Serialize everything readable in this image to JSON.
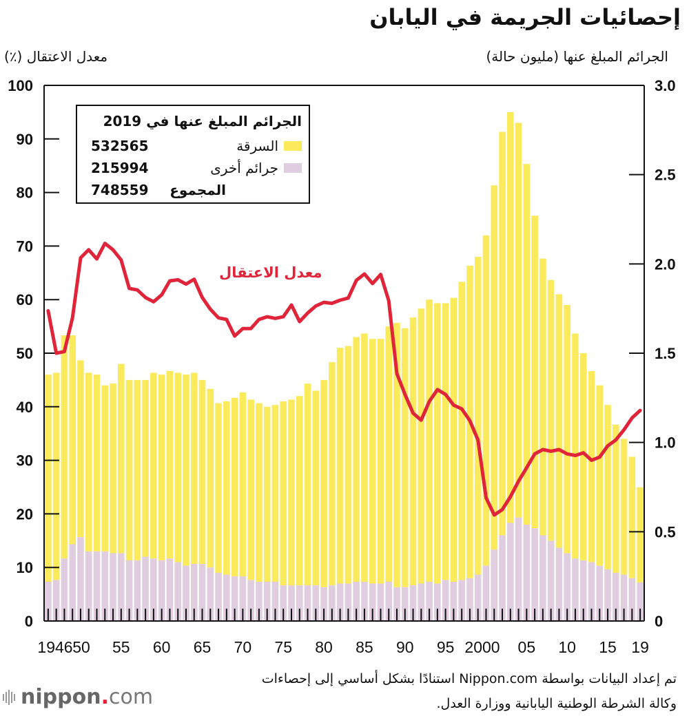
{
  "title": "إحصائيات الجريمة في اليابان",
  "left_axis_title": "معدل الاعتقال (٪)",
  "right_axis_title": "الجرائم المبلغ عنها (مليون حالة)",
  "legend": {
    "heading": "الجرائم المبلغ عنها في 2019",
    "items": [
      {
        "label": "السرقة",
        "value": "532565",
        "color": "#fbea5c"
      },
      {
        "label": "جرائم أخرى",
        "value": "215994",
        "color": "#e0cde0"
      },
      {
        "label": "المجموع",
        "value": "748559"
      }
    ]
  },
  "line_label": "معدل الاعتقال",
  "source": {
    "line1": "تم إعداد البيانات بواسطة Nippon.com استنادًا بشكل أساسي إلى إحصاءات",
    "line2": "وكالة الشرطة الوطنية اليابانية ووزارة العدل."
  },
  "logo": {
    "name": "nippon",
    "dot": ".",
    "suffix": "com"
  },
  "chart_data": {
    "type": "bar",
    "title": "إحصائيات الجريمة في اليابان",
    "xlabel": "",
    "ylabel_left": "معدل الاعتقال (٪)",
    "ylabel_right": "الجرائم المبلغ عنها (مليون حالة)",
    "ylim_left": [
      0,
      100
    ],
    "ylim_right": [
      0,
      3.0
    ],
    "left_ticks": [
      "0",
      "10",
      "20",
      "30",
      "40",
      "50",
      "60",
      "70",
      "80",
      "90",
      "100"
    ],
    "right_ticks": [
      "0",
      "0.5",
      "1.0",
      "1.5",
      "2.0",
      "2.5",
      "3.0"
    ],
    "x_tick_labels": [
      {
        "year": 1946,
        "label": "1946"
      },
      {
        "year": 1950,
        "label": "50"
      },
      {
        "year": 1955,
        "label": "55"
      },
      {
        "year": 1960,
        "label": "60"
      },
      {
        "year": 1965,
        "label": "65"
      },
      {
        "year": 1970,
        "label": "70"
      },
      {
        "year": 1975,
        "label": "75"
      },
      {
        "year": 1980,
        "label": "80"
      },
      {
        "year": 1985,
        "label": "85"
      },
      {
        "year": 1990,
        "label": "90"
      },
      {
        "year": 1995,
        "label": "95"
      },
      {
        "year": 2000,
        "label": "2000"
      },
      {
        "year": 2005,
        "label": "05"
      },
      {
        "year": 2010,
        "label": "10"
      },
      {
        "year": 2015,
        "label": "15"
      },
      {
        "year": 2019,
        "label": "19"
      }
    ],
    "years": [
      1946,
      1947,
      1948,
      1949,
      1950,
      1951,
      1952,
      1953,
      1954,
      1955,
      1956,
      1957,
      1958,
      1959,
      1960,
      1961,
      1962,
      1963,
      1964,
      1965,
      1966,
      1967,
      1968,
      1969,
      1970,
      1971,
      1972,
      1973,
      1974,
      1975,
      1976,
      1977,
      1978,
      1979,
      1980,
      1981,
      1982,
      1983,
      1984,
      1985,
      1986,
      1987,
      1988,
      1989,
      1990,
      1991,
      1992,
      1993,
      1994,
      1995,
      1996,
      1997,
      1998,
      1999,
      2000,
      2001,
      2002,
      2003,
      2004,
      2005,
      2006,
      2007,
      2008,
      2009,
      2010,
      2011,
      2012,
      2013,
      2014,
      2015,
      2016,
      2017,
      2018,
      2019
    ],
    "series": [
      {
        "name": "جرائم أخرى",
        "axis": "right",
        "color": "#e0cde0",
        "values": [
          0.22,
          0.23,
          0.35,
          0.43,
          0.47,
          0.39,
          0.39,
          0.39,
          0.38,
          0.38,
          0.34,
          0.34,
          0.36,
          0.35,
          0.34,
          0.35,
          0.33,
          0.31,
          0.32,
          0.32,
          0.3,
          0.27,
          0.26,
          0.25,
          0.25,
          0.23,
          0.22,
          0.22,
          0.22,
          0.2,
          0.2,
          0.2,
          0.2,
          0.2,
          0.19,
          0.2,
          0.21,
          0.21,
          0.22,
          0.22,
          0.21,
          0.21,
          0.22,
          0.19,
          0.19,
          0.2,
          0.21,
          0.22,
          0.21,
          0.23,
          0.22,
          0.23,
          0.24,
          0.26,
          0.31,
          0.4,
          0.48,
          0.55,
          0.58,
          0.54,
          0.52,
          0.48,
          0.45,
          0.41,
          0.38,
          0.35,
          0.34,
          0.33,
          0.31,
          0.29,
          0.27,
          0.26,
          0.24,
          0.216
        ]
      },
      {
        "name": "السرقة",
        "axis": "right",
        "color": "#fbea5c",
        "values": [
          1.16,
          1.16,
          1.25,
          1.17,
          0.99,
          1.0,
          0.99,
          0.93,
          0.95,
          1.06,
          1.01,
          1.01,
          0.99,
          1.04,
          1.04,
          1.05,
          1.06,
          1.07,
          1.07,
          1.03,
          1.0,
          0.95,
          0.97,
          1.0,
          1.03,
          1.01,
          1.0,
          0.98,
          0.99,
          1.03,
          1.04,
          1.06,
          1.13,
          1.09,
          1.16,
          1.25,
          1.32,
          1.33,
          1.37,
          1.39,
          1.37,
          1.37,
          1.43,
          1.48,
          1.45,
          1.5,
          1.54,
          1.58,
          1.57,
          1.55,
          1.59,
          1.67,
          1.75,
          1.78,
          1.85,
          2.04,
          2.26,
          2.3,
          2.21,
          2.02,
          1.75,
          1.55,
          1.46,
          1.42,
          1.39,
          1.26,
          1.16,
          1.07,
          1.01,
          0.92,
          0.83,
          0.76,
          0.68,
          0.533
        ]
      },
      {
        "name": "المجموع",
        "axis": "right",
        "values": [
          1.38,
          1.39,
          1.6,
          1.6,
          1.46,
          1.39,
          1.38,
          1.32,
          1.33,
          1.44,
          1.35,
          1.35,
          1.35,
          1.39,
          1.38,
          1.4,
          1.39,
          1.38,
          1.39,
          1.35,
          1.3,
          1.22,
          1.23,
          1.25,
          1.28,
          1.24,
          1.22,
          1.2,
          1.21,
          1.23,
          1.24,
          1.26,
          1.33,
          1.29,
          1.35,
          1.45,
          1.53,
          1.54,
          1.59,
          1.61,
          1.58,
          1.58,
          1.65,
          1.67,
          1.64,
          1.7,
          1.75,
          1.8,
          1.78,
          1.78,
          1.81,
          1.9,
          1.99,
          2.04,
          2.16,
          2.44,
          2.74,
          2.85,
          2.79,
          2.56,
          2.27,
          2.03,
          1.91,
          1.83,
          1.77,
          1.61,
          1.5,
          1.4,
          1.32,
          1.21,
          1.1,
          1.02,
          0.92,
          0.749
        ]
      },
      {
        "name": "معدل الاعتقال",
        "type": "line",
        "axis": "left",
        "color": "#e0243a",
        "values": [
          57.9,
          50.0,
          50.3,
          56.6,
          67.8,
          69.3,
          67.6,
          70.5,
          69.3,
          67.4,
          62.1,
          61.8,
          60.4,
          59.6,
          60.9,
          63.5,
          63.7,
          62.9,
          63.8,
          60.4,
          58.2,
          56.6,
          56.3,
          53.2,
          54.6,
          54.6,
          56.3,
          56.8,
          56.5,
          56.8,
          59.0,
          55.9,
          57.5,
          58.8,
          59.5,
          59.3,
          59.9,
          60.3,
          63.6,
          64.8,
          63.0,
          64.7,
          59.8,
          46.2,
          42.3,
          38.8,
          37.5,
          41.0,
          43.2,
          42.3,
          40.3,
          39.6,
          37.4,
          33.8,
          23.0,
          19.8,
          20.8,
          23.2,
          26.1,
          28.6,
          31.2,
          32.0,
          31.7,
          32.0,
          31.2,
          30.9,
          31.4,
          30.0,
          30.6,
          32.7,
          33.8,
          35.7,
          37.9,
          39.3
        ]
      }
    ],
    "grid": false,
    "legend_position": "top-left"
  }
}
